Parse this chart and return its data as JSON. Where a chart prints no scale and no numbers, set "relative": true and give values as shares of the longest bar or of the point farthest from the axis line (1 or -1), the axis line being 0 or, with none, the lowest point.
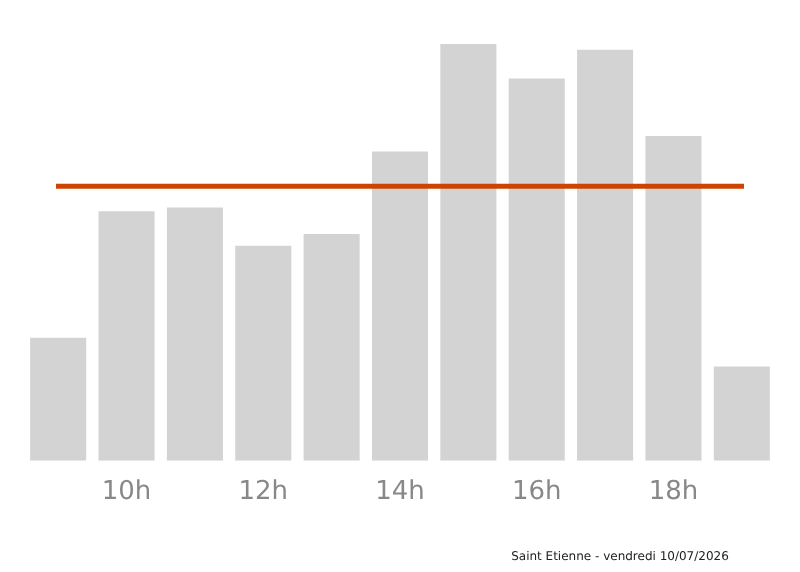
{
  "chart_data": {
    "type": "bar",
    "relative": true,
    "categories": [
      null,
      "10h",
      null,
      "12h",
      null,
      "14h",
      null,
      "16h",
      null,
      "18h",
      null
    ],
    "values": [
      0.295,
      0.599,
      0.608,
      0.516,
      0.544,
      0.742,
      1,
      0.917,
      0.986,
      0.779,
      0.226
    ],
    "color": "#d3d3d3",
    "grid": false,
    "legend": false,
    "ref_lines": [
      {
        "axis": "y",
        "value": 0.659,
        "color": "#cc4400"
      }
    ],
    "annotations": [
      "Saint Etienne - vendredi 10/07/2026"
    ]
  }
}
